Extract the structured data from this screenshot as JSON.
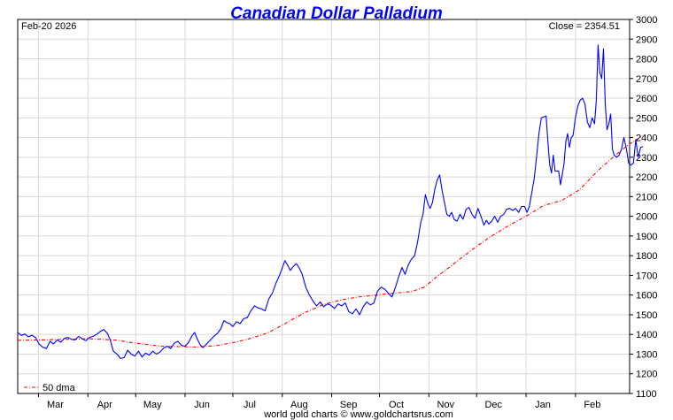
{
  "chart_data": {
    "type": "line",
    "title": "Canadian Dollar Palladium",
    "date_label": "Feb-20  2026",
    "close_label": "Close = 2354.51",
    "footer": "world gold charts © www.goldchartsrus.com",
    "xlabel": "",
    "ylabel": "",
    "ylim": [
      1100,
      3000
    ],
    "y_ticks": [
      1100,
      1200,
      1300,
      1400,
      1500,
      1600,
      1700,
      1800,
      1900,
      2000,
      2100,
      2200,
      2300,
      2400,
      2500,
      2600,
      2700,
      2800,
      2900,
      3000
    ],
    "x_ticks": [
      {
        "label": "Mar",
        "t": 0.0703
      },
      {
        "label": "Apr",
        "t": 0.153
      },
      {
        "label": "May",
        "t": 0.2329
      },
      {
        "label": "Jun",
        "t": 0.3155
      },
      {
        "label": "Jul",
        "t": 0.3955
      },
      {
        "label": "Aug",
        "t": 0.4782
      },
      {
        "label": "Sep",
        "t": 0.5608
      },
      {
        "label": "Oct",
        "t": 0.6408
      },
      {
        "label": "Nov",
        "t": 0.7234
      },
      {
        "label": "Dec",
        "t": 0.8033
      },
      {
        "label": "Jan",
        "t": 0.886
      },
      {
        "label": "Feb",
        "t": 0.9687
      }
    ],
    "grid": true,
    "legend": {
      "position": "bottom-left",
      "entries": [
        "50 dma"
      ]
    },
    "series": [
      {
        "name": "",
        "color": "#0000ff",
        "style": "solid",
        "points": [
          [
            0.0,
            1410
          ],
          [
            0.006,
            1395
          ],
          [
            0.012,
            1402
          ],
          [
            0.018,
            1388
          ],
          [
            0.024,
            1396
          ],
          [
            0.03,
            1383
          ],
          [
            0.036,
            1350
          ],
          [
            0.042,
            1335
          ],
          [
            0.048,
            1328
          ],
          [
            0.054,
            1365
          ],
          [
            0.06,
            1352
          ],
          [
            0.066,
            1372
          ],
          [
            0.072,
            1360
          ],
          [
            0.078,
            1380
          ],
          [
            0.084,
            1385
          ],
          [
            0.09,
            1375
          ],
          [
            0.096,
            1372
          ],
          [
            0.102,
            1390
          ],
          [
            0.108,
            1378
          ],
          [
            0.114,
            1368
          ],
          [
            0.12,
            1385
          ],
          [
            0.126,
            1390
          ],
          [
            0.132,
            1400
          ],
          [
            0.138,
            1415
          ],
          [
            0.144,
            1425
          ],
          [
            0.15,
            1405
          ],
          [
            0.155,
            1370
          ],
          [
            0.16,
            1315
          ],
          [
            0.166,
            1300
          ],
          [
            0.172,
            1278
          ],
          [
            0.178,
            1282
          ],
          [
            0.184,
            1320
          ],
          [
            0.19,
            1300
          ],
          [
            0.196,
            1290
          ],
          [
            0.202,
            1315
          ],
          [
            0.208,
            1285
          ],
          [
            0.214,
            1305
          ],
          [
            0.22,
            1295
          ],
          [
            0.226,
            1315
          ],
          [
            0.232,
            1300
          ],
          [
            0.238,
            1310
          ],
          [
            0.244,
            1330
          ],
          [
            0.25,
            1340
          ],
          [
            0.256,
            1328
          ],
          [
            0.262,
            1355
          ],
          [
            0.268,
            1365
          ],
          [
            0.274,
            1345
          ],
          [
            0.28,
            1340
          ],
          [
            0.286,
            1360
          ],
          [
            0.292,
            1395
          ],
          [
            0.296,
            1410
          ],
          [
            0.3,
            1380
          ],
          [
            0.305,
            1348
          ],
          [
            0.31,
            1333
          ],
          [
            0.316,
            1352
          ],
          [
            0.322,
            1370
          ],
          [
            0.328,
            1390
          ],
          [
            0.334,
            1405
          ],
          [
            0.34,
            1430
          ],
          [
            0.345,
            1470
          ],
          [
            0.35,
            1460
          ],
          [
            0.355,
            1455
          ],
          [
            0.36,
            1440
          ],
          [
            0.366,
            1465
          ],
          [
            0.372,
            1455
          ],
          [
            0.378,
            1480
          ],
          [
            0.384,
            1485
          ],
          [
            0.39,
            1520
          ],
          [
            0.396,
            1545
          ],
          [
            0.402,
            1535
          ],
          [
            0.408,
            1530
          ],
          [
            0.414,
            1520
          ],
          [
            0.42,
            1580
          ],
          [
            0.426,
            1610
          ],
          [
            0.432,
            1660
          ],
          [
            0.438,
            1700
          ],
          [
            0.443,
            1740
          ],
          [
            0.447,
            1775
          ],
          [
            0.452,
            1750
          ],
          [
            0.456,
            1725
          ],
          [
            0.461,
            1745
          ],
          [
            0.466,
            1760
          ],
          [
            0.471,
            1738
          ],
          [
            0.476,
            1705
          ],
          [
            0.482,
            1640
          ],
          [
            0.488,
            1600
          ],
          [
            0.494,
            1570
          ],
          [
            0.5,
            1545
          ],
          [
            0.506,
            1565
          ],
          [
            0.512,
            1540
          ],
          [
            0.518,
            1555
          ],
          [
            0.524,
            1548
          ],
          [
            0.53,
            1532
          ],
          [
            0.536,
            1555
          ],
          [
            0.542,
            1545
          ],
          [
            0.548,
            1560
          ],
          [
            0.554,
            1515
          ],
          [
            0.56,
            1505
          ],
          [
            0.566,
            1530
          ],
          [
            0.572,
            1500
          ],
          [
            0.578,
            1540
          ],
          [
            0.584,
            1565
          ],
          [
            0.59,
            1550
          ],
          [
            0.596,
            1560
          ],
          [
            0.602,
            1620
          ],
          [
            0.608,
            1640
          ],
          [
            0.614,
            1630
          ],
          [
            0.62,
            1610
          ],
          [
            0.626,
            1590
          ],
          [
            0.632,
            1640
          ],
          [
            0.638,
            1700
          ],
          [
            0.643,
            1740
          ],
          [
            0.648,
            1705
          ],
          [
            0.653,
            1750
          ],
          [
            0.658,
            1780
          ],
          [
            0.664,
            1800
          ],
          [
            0.669,
            1870
          ],
          [
            0.674,
            1965
          ],
          [
            0.678,
            2010
          ],
          [
            0.682,
            2110
          ],
          [
            0.686,
            2065
          ],
          [
            0.69,
            2040
          ],
          [
            0.694,
            2070
          ],
          [
            0.698,
            2140
          ],
          [
            0.702,
            2185
          ],
          [
            0.706,
            2210
          ],
          [
            0.71,
            2130
          ],
          [
            0.714,
            2070
          ],
          [
            0.718,
            2010
          ],
          [
            0.722,
            2000
          ],
          [
            0.726,
            2020
          ],
          [
            0.73,
            1985
          ],
          [
            0.735,
            1975
          ],
          [
            0.74,
            2010
          ],
          [
            0.745,
            1985
          ],
          [
            0.75,
            2035
          ],
          [
            0.755,
            2045
          ],
          [
            0.76,
            2010
          ],
          [
            0.765,
            1990
          ],
          [
            0.77,
            2040
          ],
          [
            0.775,
            2000
          ],
          [
            0.78,
            1955
          ],
          [
            0.784,
            1980
          ],
          [
            0.788,
            1960
          ],
          [
            0.793,
            1975
          ],
          [
            0.798,
            2000
          ],
          [
            0.803,
            1970
          ],
          [
            0.808,
            2000
          ],
          [
            0.813,
            2010
          ],
          [
            0.818,
            2035
          ],
          [
            0.823,
            2040
          ],
          [
            0.828,
            2030
          ],
          [
            0.833,
            2040
          ],
          [
            0.838,
            2020
          ],
          [
            0.843,
            2050
          ],
          [
            0.848,
            2050
          ],
          [
            0.852,
            2020
          ],
          [
            0.856,
            2050
          ],
          [
            0.86,
            2120
          ],
          [
            0.864,
            2190
          ],
          [
            0.868,
            2300
          ],
          [
            0.872,
            2420
          ],
          [
            0.876,
            2500
          ],
          [
            0.88,
            2505
          ],
          [
            0.884,
            2510
          ],
          [
            0.887,
            2380
          ],
          [
            0.89,
            2260
          ],
          [
            0.893,
            2220
          ],
          [
            0.896,
            2310
          ],
          [
            0.899,
            2230
          ],
          [
            0.902,
            2230
          ],
          [
            0.905,
            2230
          ],
          [
            0.908,
            2160
          ],
          [
            0.911,
            2210
          ],
          [
            0.914,
            2270
          ],
          [
            0.917,
            2380
          ],
          [
            0.92,
            2420
          ],
          [
            0.923,
            2350
          ],
          [
            0.926,
            2400
          ],
          [
            0.929,
            2410
          ],
          [
            0.933,
            2500
          ],
          [
            0.937,
            2560
          ],
          [
            0.941,
            2590
          ],
          [
            0.945,
            2600
          ],
          [
            0.949,
            2570
          ],
          [
            0.953,
            2480
          ],
          [
            0.957,
            2450
          ],
          [
            0.961,
            2500
          ],
          [
            0.965,
            2470
          ],
          [
            0.968,
            2590
          ],
          [
            0.971,
            2870
          ],
          [
            0.974,
            2730
          ],
          [
            0.977,
            2700
          ],
          [
            0.98,
            2850
          ],
          [
            0.983,
            2570
          ],
          [
            0.986,
            2440
          ],
          [
            0.989,
            2470
          ],
          [
            0.992,
            2520
          ],
          [
            0.995,
            2340
          ],
          [
            0.998,
            2310
          ],
          [
            1.002,
            2300
          ],
          [
            1.006,
            2310
          ],
          [
            1.01,
            2340
          ],
          [
            1.014,
            2400
          ],
          [
            1.018,
            2350
          ],
          [
            1.022,
            2270
          ],
          [
            1.026,
            2260
          ],
          [
            1.03,
            2270
          ],
          [
            1.034,
            2390
          ],
          [
            1.038,
            2300
          ],
          [
            1.042,
            2350
          ],
          [
            1.046,
            2355
          ]
        ]
      },
      {
        "name": "50 dma",
        "color": "#ff0000",
        "style": "dashdot",
        "points": [
          [
            0.0,
            1370
          ],
          [
            0.04,
            1372
          ],
          [
            0.08,
            1375
          ],
          [
            0.12,
            1378
          ],
          [
            0.16,
            1372
          ],
          [
            0.2,
            1355
          ],
          [
            0.24,
            1340
          ],
          [
            0.27,
            1338
          ],
          [
            0.3,
            1336
          ],
          [
            0.33,
            1342
          ],
          [
            0.36,
            1358
          ],
          [
            0.39,
            1380
          ],
          [
            0.42,
            1410
          ],
          [
            0.45,
            1460
          ],
          [
            0.48,
            1510
          ],
          [
            0.51,
            1550
          ],
          [
            0.54,
            1575
          ],
          [
            0.57,
            1590
          ],
          [
            0.6,
            1600
          ],
          [
            0.63,
            1610
          ],
          [
            0.66,
            1618
          ],
          [
            0.68,
            1640
          ],
          [
            0.7,
            1690
          ],
          [
            0.73,
            1760
          ],
          [
            0.76,
            1830
          ],
          [
            0.79,
            1895
          ],
          [
            0.82,
            1950
          ],
          [
            0.85,
            2000
          ],
          [
            0.88,
            2055
          ],
          [
            0.91,
            2080
          ],
          [
            0.94,
            2135
          ],
          [
            0.97,
            2230
          ],
          [
            1.0,
            2310
          ],
          [
            1.02,
            2360
          ],
          [
            1.046,
            2410
          ]
        ]
      }
    ]
  }
}
